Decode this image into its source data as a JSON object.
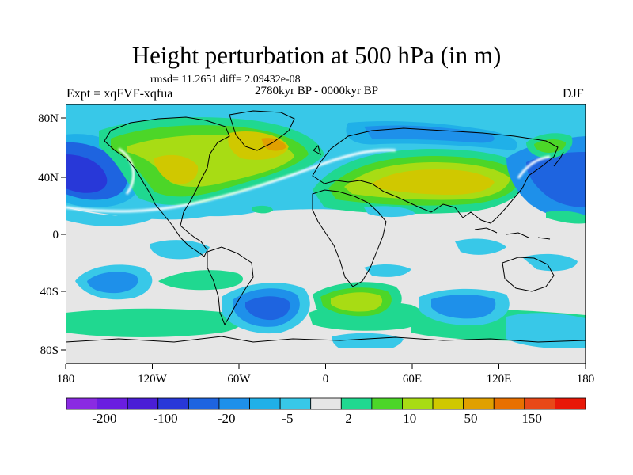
{
  "title": "Height perturbation at 500 hPa (in m)",
  "stats": "rmsd= 11.2651 diff= 2.09432e-08",
  "experiment": "Expt = xqFVF-xqfua",
  "period": "2780kyr BP - 0000kyr BP",
  "season": "DJF",
  "lat_ticks": [
    "80N",
    "40N",
    "0",
    "40S",
    "80S"
  ],
  "lon_ticks": [
    "180",
    "120W",
    "60W",
    "0",
    "60E",
    "120E",
    "180"
  ],
  "colorbar": {
    "labels": [
      "-200",
      "-100",
      "-20",
      "-5",
      "2",
      "10",
      "50",
      "150"
    ],
    "colors": [
      "#8a2be2",
      "#6a1ee0",
      "#4a1ed6",
      "#2838d8",
      "#1e64e0",
      "#1e90ea",
      "#20b0e8",
      "#38c8e8",
      "#e6e6e6",
      "#20d890",
      "#4cd628",
      "#a8dc14",
      "#d0c800",
      "#e0a000",
      "#e87000",
      "#e84818",
      "#e81808"
    ]
  },
  "colors": {
    "land_outline": "#000000",
    "ocean_neutral": "#e6e6e6"
  }
}
